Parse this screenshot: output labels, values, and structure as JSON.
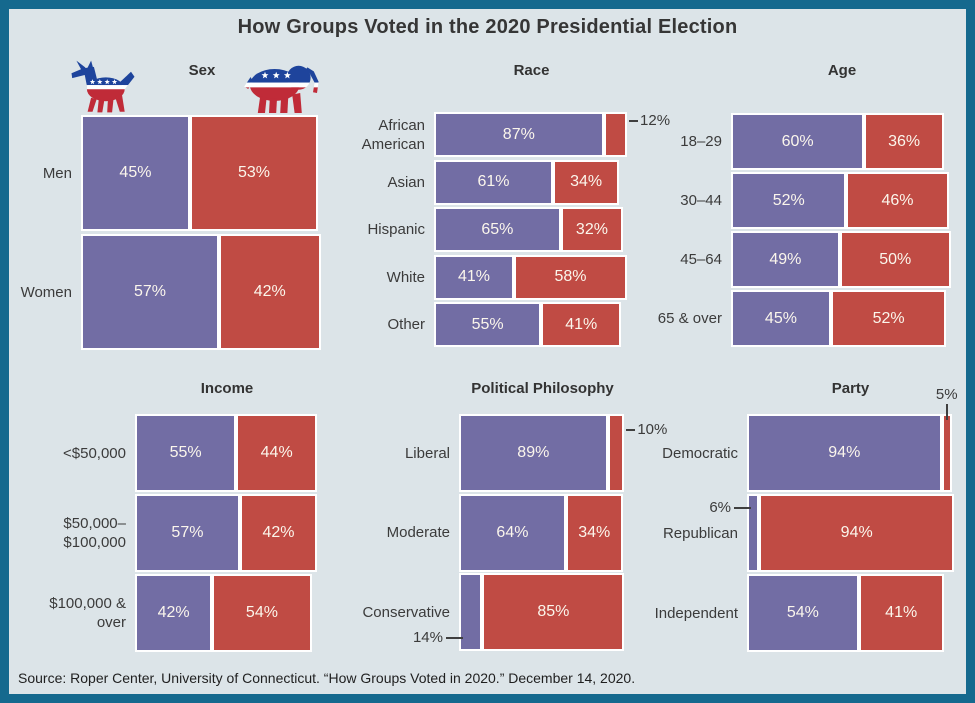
{
  "title": "How Groups Voted in the 2020 Presidential Election",
  "source_note": "Source: Roper Center, University of Connecticut. “How Groups Voted in 2020.” December 14, 2020.",
  "icons": {
    "democratic": "donkey-icon",
    "republican": "elephant-icon"
  },
  "colors": {
    "democratic": "#726da4",
    "republican": "#c04b44",
    "background": "#dce4e8",
    "frame_border": "#15698e",
    "text": "#3b3b3b",
    "value_text": "#fbf6ec",
    "callout_line": "#3f3f3f",
    "logo_blue": "#1e449c",
    "logo_red": "#c02b38"
  },
  "chart_data": [
    {
      "type": "bar",
      "title": "Sex",
      "unit": "%",
      "stacked": true,
      "series_names": [
        "Democratic",
        "Republican"
      ],
      "categories": [
        "Men",
        "Women"
      ],
      "series": [
        {
          "name": "Democratic",
          "values": [
            45,
            57
          ]
        },
        {
          "name": "Republican",
          "values": [
            53,
            42
          ]
        }
      ],
      "callouts": []
    },
    {
      "type": "bar",
      "title": "Race",
      "unit": "%",
      "stacked": true,
      "series_names": [
        "Democratic",
        "Republican"
      ],
      "categories": [
        "African\nAmerican",
        "Asian",
        "Hispanic",
        "White",
        "Other"
      ],
      "series": [
        {
          "name": "Democratic",
          "values": [
            87,
            61,
            65,
            41,
            55
          ]
        },
        {
          "name": "Republican",
          "values": [
            12,
            34,
            32,
            58,
            41
          ]
        }
      ],
      "callouts": [
        {
          "row": 0,
          "series": "Republican",
          "side": "right"
        }
      ]
    },
    {
      "type": "bar",
      "title": "Age",
      "unit": "%",
      "stacked": true,
      "series_names": [
        "Democratic",
        "Republican"
      ],
      "categories": [
        "18–29",
        "30–44",
        "45–64",
        "65 & over"
      ],
      "series": [
        {
          "name": "Democratic",
          "values": [
            60,
            52,
            49,
            45
          ]
        },
        {
          "name": "Republican",
          "values": [
            36,
            46,
            50,
            52
          ]
        }
      ],
      "callouts": []
    },
    {
      "type": "bar",
      "title": "Income",
      "unit": "%",
      "stacked": true,
      "series_names": [
        "Democratic",
        "Republican"
      ],
      "categories": [
        "<$50,000",
        "$50,000–\n$100,000",
        "$100,000 &\nover"
      ],
      "series": [
        {
          "name": "Democratic",
          "values": [
            55,
            57,
            42
          ]
        },
        {
          "name": "Republican",
          "values": [
            44,
            42,
            54
          ]
        }
      ],
      "callouts": []
    },
    {
      "type": "bar",
      "title": "Political Philosophy",
      "unit": "%",
      "stacked": true,
      "series_names": [
        "Democratic",
        "Republican"
      ],
      "categories": [
        "Liberal",
        "Moderate",
        "Conservative"
      ],
      "series": [
        {
          "name": "Democratic",
          "values": [
            89,
            64,
            14
          ]
        },
        {
          "name": "Republican",
          "values": [
            10,
            34,
            85
          ]
        }
      ],
      "callouts": [
        {
          "row": 0,
          "series": "Republican",
          "side": "right"
        },
        {
          "row": 2,
          "series": "Democratic",
          "side": "bottom-left"
        }
      ]
    },
    {
      "type": "bar",
      "title": "Party",
      "unit": "%",
      "stacked": true,
      "series_names": [
        "Democratic",
        "Republican"
      ],
      "categories": [
        "Democratic",
        "Republican",
        "Independent"
      ],
      "series": [
        {
          "name": "Democratic",
          "values": [
            94,
            6,
            54
          ]
        },
        {
          "name": "Republican",
          "values": [
            5,
            94,
            41
          ]
        }
      ],
      "callouts": [
        {
          "row": 0,
          "series": "Republican",
          "side": "top"
        },
        {
          "row": 1,
          "series": "Democratic",
          "side": "left"
        }
      ]
    }
  ]
}
